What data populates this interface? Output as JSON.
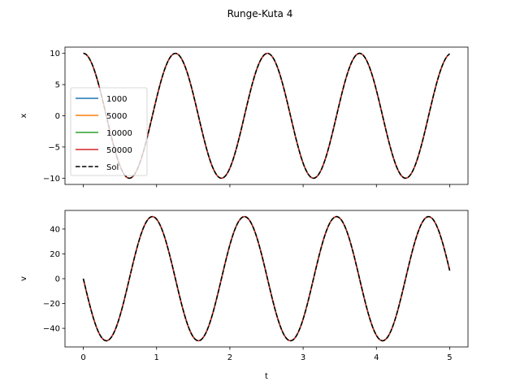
{
  "chart_data": {
    "title": "Runge-Kuta 4",
    "type": "line",
    "subplots": [
      {
        "ylabel": "x",
        "xlim": [
          -0.25,
          5.25
        ],
        "ylim": [
          -11,
          11
        ],
        "yticks": [
          10,
          5,
          0,
          -5,
          -10
        ],
        "ytick_labels": [
          "10",
          "5",
          "0",
          "−5",
          "−10"
        ],
        "xticks": [
          0,
          1,
          2,
          3,
          4,
          5
        ],
        "xtick_labels": [
          "",
          "",
          "",
          "",
          "",
          ""
        ],
        "function": {
          "kind": "cos",
          "amplitude": 10,
          "omega": 5,
          "t_start": 0,
          "t_end": 5
        },
        "legend": {
          "placement": "center-left",
          "entries": [
            "1000",
            "5000",
            "10000",
            "50000",
            "Sol"
          ]
        }
      },
      {
        "ylabel": "v",
        "xlabel": "t",
        "xlim": [
          -0.25,
          5.25
        ],
        "ylim": [
          -55,
          55
        ],
        "yticks": [
          40,
          20,
          0,
          -20,
          -40
        ],
        "ytick_labels": [
          "40",
          "20",
          "0",
          "−20",
          "−40"
        ],
        "xticks": [
          0,
          1,
          2,
          3,
          4,
          5
        ],
        "xtick_labels": [
          "0",
          "1",
          "2",
          "3",
          "4",
          "5"
        ],
        "function": {
          "kind": "-sin",
          "amplitude": 50,
          "omega": 5,
          "t_start": 0,
          "t_end": 5
        }
      }
    ],
    "series": [
      {
        "name": "1000",
        "color": "#1f77b4",
        "style": "solid"
      },
      {
        "name": "5000",
        "color": "#ff7f0e",
        "style": "solid"
      },
      {
        "name": "10000",
        "color": "#2ca02c",
        "style": "solid"
      },
      {
        "name": "50000",
        "color": "#d62728",
        "style": "solid"
      },
      {
        "name": "Sol",
        "color": "#000000",
        "style": "dashed"
      }
    ]
  }
}
